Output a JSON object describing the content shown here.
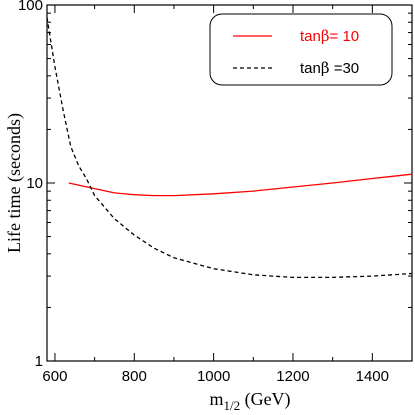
{
  "chart_data": {
    "type": "line",
    "xlabel_main": "m",
    "xlabel_sub": "1/2",
    "xlabel_unit": " (GeV)",
    "ylabel": "Life time (seconds)",
    "xlim": [
      580,
      1500
    ],
    "ylim": [
      1,
      100
    ],
    "yscale": "log",
    "x_ticks": [
      600,
      800,
      1000,
      1200,
      1400
    ],
    "x_tick_labels": [
      "600",
      "800",
      "1000",
      "1200",
      "1400"
    ],
    "y_ticks": [
      1,
      10,
      100
    ],
    "y_tick_labels": [
      "1",
      "10",
      "100"
    ],
    "legend_position": "top-right",
    "series": [
      {
        "name_prefix": "tan",
        "name_symbol": "β",
        "name_suffix": "= 10",
        "color": "#ff0000",
        "style": "solid",
        "x": [
          635,
          700,
          750,
          800,
          850,
          900,
          1000,
          1100,
          1200,
          1300,
          1400,
          1500
        ],
        "y": [
          10.0,
          9.3,
          8.8,
          8.6,
          8.5,
          8.5,
          8.7,
          9.0,
          9.5,
          10.0,
          10.6,
          11.2
        ]
      },
      {
        "name_prefix": "tan",
        "name_symbol": "β",
        "name_suffix": " =30",
        "color": "#000000",
        "style": "dashed",
        "x": [
          580,
          600,
          620,
          640,
          660,
          680,
          700,
          750,
          800,
          850,
          900,
          1000,
          1100,
          1200,
          1300,
          1400,
          1500
        ],
        "y": [
          85,
          45,
          26,
          16,
          12.5,
          10.5,
          8.5,
          6.3,
          5.1,
          4.3,
          3.8,
          3.3,
          3.05,
          2.95,
          2.95,
          3.0,
          3.1
        ]
      }
    ]
  }
}
